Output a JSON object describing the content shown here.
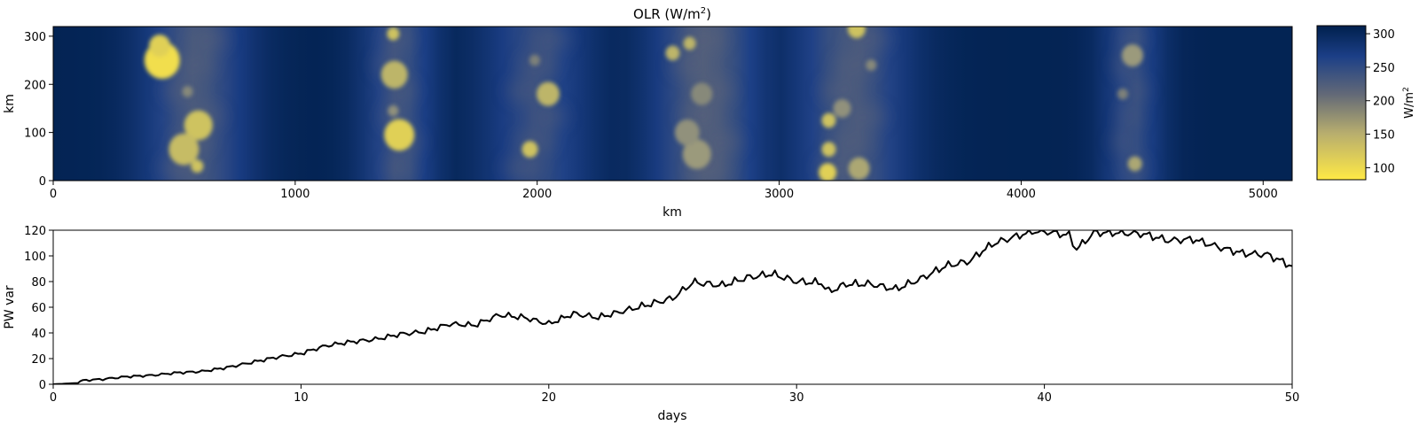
{
  "chart_data": [
    {
      "type": "heatmap",
      "title_main": "OLR (W/m",
      "title_sup": "2",
      "title_end": ")",
      "xlabel": "km",
      "ylabel": "km",
      "xlim": [
        0,
        5120
      ],
      "ylim": [
        0,
        320
      ],
      "xticks": [
        0,
        1000,
        2000,
        3000,
        4000,
        5000
      ],
      "yticks": [
        0,
        100,
        200,
        300
      ],
      "colormap": [
        "#ffe945",
        "#9b9a7c",
        "#646a77",
        "#1c3f87",
        "#00204d"
      ],
      "colorbar": {
        "label_main": "W/m",
        "label_sup": "2",
        "range": [
          82,
          312
        ],
        "ticks": [
          100,
          150,
          200,
          250,
          300
        ]
      },
      "convective_bands_km": [
        {
          "center": 590,
          "width": 230,
          "depth": 0.55
        },
        {
          "center": 1430,
          "width": 160,
          "depth": 0.5
        },
        {
          "center": 2000,
          "width": 230,
          "depth": 0.45
        },
        {
          "center": 2700,
          "width": 240,
          "depth": 0.6
        },
        {
          "center": 3300,
          "width": 250,
          "depth": 0.55
        },
        {
          "center": 4460,
          "width": 130,
          "depth": 0.45
        }
      ],
      "cells": [
        {
          "x": 450,
          "y": 250,
          "r": 20,
          "v": 90
        },
        {
          "x": 440,
          "y": 280,
          "r": 12,
          "v": 100
        },
        {
          "x": 600,
          "y": 115,
          "r": 16,
          "v": 110
        },
        {
          "x": 540,
          "y": 65,
          "r": 17,
          "v": 115
        },
        {
          "x": 595,
          "y": 30,
          "r": 7,
          "v": 110
        },
        {
          "x": 555,
          "y": 185,
          "r": 6,
          "v": 160
        },
        {
          "x": 1430,
          "y": 95,
          "r": 17,
          "v": 100
        },
        {
          "x": 1410,
          "y": 220,
          "r": 15,
          "v": 120
        },
        {
          "x": 1405,
          "y": 305,
          "r": 7,
          "v": 110
        },
        {
          "x": 1405,
          "y": 145,
          "r": 6,
          "v": 150
        },
        {
          "x": 2045,
          "y": 180,
          "r": 13,
          "v": 120
        },
        {
          "x": 1970,
          "y": 65,
          "r": 9,
          "v": 110
        },
        {
          "x": 1990,
          "y": 250,
          "r": 6,
          "v": 170
        },
        {
          "x": 2660,
          "y": 55,
          "r": 16,
          "v": 140
        },
        {
          "x": 2620,
          "y": 100,
          "r": 14,
          "v": 150
        },
        {
          "x": 2560,
          "y": 265,
          "r": 8,
          "v": 120
        },
        {
          "x": 2630,
          "y": 285,
          "r": 7,
          "v": 120
        },
        {
          "x": 2680,
          "y": 180,
          "r": 12,
          "v": 160
        },
        {
          "x": 3200,
          "y": 17,
          "r": 10,
          "v": 100
        },
        {
          "x": 3205,
          "y": 65,
          "r": 8,
          "v": 110
        },
        {
          "x": 3205,
          "y": 125,
          "r": 8,
          "v": 110
        },
        {
          "x": 3320,
          "y": 315,
          "r": 10,
          "v": 110
        },
        {
          "x": 3330,
          "y": 25,
          "r": 12,
          "v": 130
        },
        {
          "x": 3260,
          "y": 150,
          "r": 10,
          "v": 150
        },
        {
          "x": 3380,
          "y": 240,
          "r": 6,
          "v": 160
        },
        {
          "x": 4460,
          "y": 260,
          "r": 12,
          "v": 140
        },
        {
          "x": 4470,
          "y": 35,
          "r": 8,
          "v": 130
        },
        {
          "x": 4420,
          "y": 180,
          "r": 6,
          "v": 170
        }
      ]
    },
    {
      "type": "line",
      "xlabel": "days",
      "ylabel": "PW var",
      "xlim": [
        0,
        50
      ],
      "ylim": [
        0,
        120
      ],
      "xticks": [
        0,
        10,
        20,
        30,
        40,
        50
      ],
      "yticks": [
        0,
        20,
        40,
        60,
        80,
        100,
        120
      ],
      "color": "#000000",
      "x": [
        0,
        1,
        1.2,
        2,
        3,
        4,
        5,
        6,
        7,
        8,
        9,
        10,
        11,
        12,
        13,
        14,
        15,
        16,
        17,
        18,
        19,
        20,
        21,
        22,
        23,
        24,
        25,
        25.8,
        26,
        27,
        28,
        29,
        30,
        31,
        31.3,
        32,
        33,
        34,
        35,
        36,
        37,
        37.5,
        38,
        39,
        39.5,
        40,
        41,
        41.3,
        42,
        43,
        44,
        45,
        46,
        47,
        48,
        49,
        50
      ],
      "y": [
        0,
        1,
        3,
        4,
        6,
        7,
        9,
        10,
        13,
        17,
        21,
        24,
        30,
        33,
        35,
        39,
        41,
        47,
        46,
        54,
        52,
        47,
        55,
        52,
        57,
        62,
        67,
        79,
        79,
        77,
        83,
        86,
        80,
        79,
        72,
        78,
        78,
        74,
        82,
        92,
        96,
        104,
        110,
        116,
        119,
        119,
        116,
        105,
        118,
        118,
        117,
        112,
        113,
        107,
        102,
        101,
        92
      ]
    }
  ]
}
